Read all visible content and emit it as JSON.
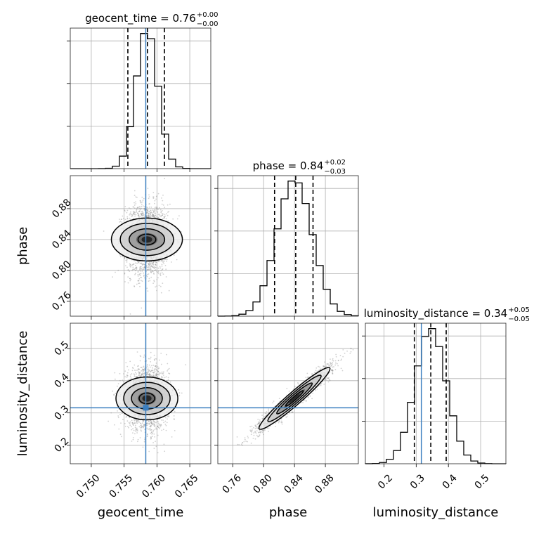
{
  "chart_data": {
    "type": "corner",
    "parameters": [
      {
        "name": "geocent_time",
        "label": "geocent_time",
        "title": {
          "main": "geocent_time = 0.76",
          "plus": "+0.00",
          "minus": "−0.00"
        },
        "range": [
          0.7468,
          0.7682
        ],
        "ticks": [
          "0.750",
          "0.755",
          "0.760",
          "0.765"
        ],
        "tick_values": [
          0.75,
          0.755,
          0.76,
          0.765
        ],
        "truth": 0.7583,
        "quantiles": [
          0.75557,
          0.75855,
          0.76114
        ],
        "posterior": {
          "mean": 0.75847,
          "sd": 0.00163
        }
      },
      {
        "name": "phase",
        "label": "phase",
        "title": {
          "main": "phase = 0.84",
          "plus": "+0.02",
          "minus": "−0.03"
        },
        "range": [
          0.7407,
          0.9227
        ],
        "ticks": [
          "0.76",
          "0.80",
          "0.84",
          "0.88"
        ],
        "tick_values": [
          0.76,
          0.8,
          0.84,
          0.88
        ],
        "truth": null,
        "quantiles": [
          0.8142,
          0.8416,
          0.864
        ],
        "posterior": {
          "mean": 0.84,
          "sd": 0.023
        }
      },
      {
        "name": "luminosity_distance",
        "label": "luminosity_distance",
        "title": {
          "main": "luminosity_distance = 0.34",
          "plus": "+0.05",
          "minus": "−0.05"
        },
        "range": [
          0.1423,
          0.5784
        ],
        "ticks": [
          "0.2",
          "0.3",
          "0.4",
          "0.5"
        ],
        "tick_values": [
          0.2,
          0.3,
          0.4,
          0.5
        ],
        "truth": 0.316,
        "quantiles": [
          0.2943,
          0.3453,
          0.3931
        ],
        "posterior": {
          "mean": 0.345,
          "sd": 0.048
        }
      }
    ],
    "correlations": {
      "phase|geocent_time": 0.0,
      "luminosity_distance|geocent_time": 0.0,
      "luminosity_distance|phase": 0.96
    },
    "grid": true,
    "histogram_bins": 20,
    "colors": {
      "histogram": "#000000",
      "quantile_lines": "#000000",
      "truth": "#3b7fc0",
      "points": "#7a7a7a"
    }
  }
}
